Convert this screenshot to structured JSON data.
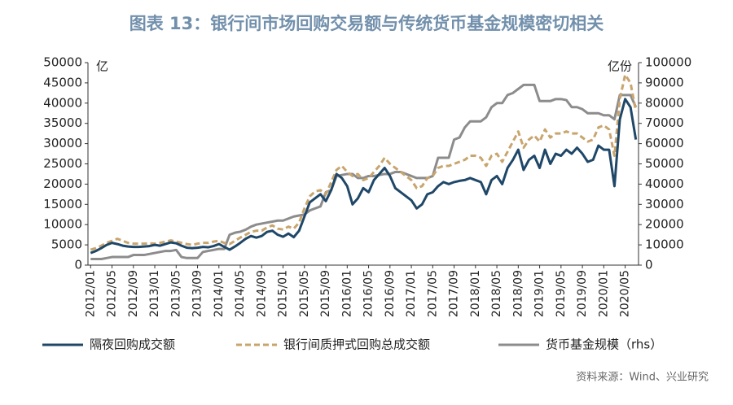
{
  "chart_data": {
    "type": "line",
    "title": "图表 13：银行间市场回购交易额与传统货币基金规模密切相关",
    "y_unit": "亿",
    "y2_unit": "亿份",
    "source": "资料来源：Wind、兴业研究",
    "categories": [
      "2012/01",
      null,
      null,
      null,
      "2012/05",
      null,
      null,
      null,
      "2012/09",
      null,
      null,
      null,
      "2013/01",
      null,
      null,
      null,
      "2013/05",
      null,
      null,
      null,
      "2013/09",
      null,
      null,
      null,
      "2014/01",
      null,
      null,
      null,
      "2014/05",
      null,
      null,
      null,
      "2014/09",
      null,
      null,
      null,
      "2015/01",
      null,
      null,
      null,
      "2015/05",
      null,
      null,
      null,
      "2015/09",
      null,
      null,
      null,
      "2016/01",
      null,
      null,
      null,
      "2016/05",
      null,
      null,
      null,
      "2016/09",
      null,
      null,
      null,
      "2017/01",
      null,
      null,
      null,
      "2017/05",
      null,
      null,
      null,
      "2017/09",
      null,
      null,
      null,
      "2018/01",
      null,
      null,
      null,
      "2018/05",
      null,
      null,
      null,
      "2018/09",
      null,
      null,
      null,
      "2019/01",
      null,
      null,
      null,
      "2019/05",
      null,
      null,
      null,
      "2019/09",
      null,
      null,
      null,
      "2020/01",
      null,
      null,
      null,
      "2020/05",
      null,
      null
    ],
    "ylim": [
      0,
      50000
    ],
    "yticks": [
      0,
      5000,
      10000,
      15000,
      20000,
      25000,
      30000,
      35000,
      40000,
      45000,
      50000
    ],
    "y2lim": [
      0,
      100000
    ],
    "y2ticks": [
      0,
      10000,
      20000,
      30000,
      40000,
      50000,
      60000,
      70000,
      80000,
      90000,
      100000
    ],
    "legend": "bottom",
    "series": [
      {
        "name": "隔夜回购成交额",
        "color": "#1f4768",
        "dash": false,
        "values": [
          3000,
          3500,
          4200,
          5000,
          5500,
          5200,
          4800,
          4600,
          4500,
          4500,
          4600,
          4700,
          5000,
          4800,
          5200,
          5600,
          5400,
          4800,
          4300,
          4200,
          4300,
          4500,
          4400,
          4700,
          5200,
          4500,
          3800,
          4600,
          5500,
          6500,
          7200,
          6800,
          7200,
          8200,
          8500,
          7500,
          7000,
          7800,
          6900,
          8500,
          12000,
          15500,
          16500,
          17500,
          15800,
          18500,
          22500,
          21500,
          19500,
          15000,
          16500,
          19000,
          18000,
          21000,
          22500,
          24000,
          22000,
          19000,
          18000,
          17000,
          16000,
          14000,
          15000,
          17500,
          18000,
          19500,
          20500,
          20000,
          20500,
          20800,
          21000,
          21500,
          21000,
          20500,
          17500,
          21000,
          22000,
          20000,
          24000,
          26000,
          28500,
          23500,
          26000,
          27000,
          24000,
          28500,
          25000,
          27500,
          27000,
          28500,
          27500,
          29000,
          27500,
          25500,
          26000,
          29500,
          28500,
          28500,
          19500,
          36000,
          41000,
          39000,
          31000
        ]
      },
      {
        "name": "银行间质押式回购总成交额",
        "color": "#c9a56e",
        "dash": true,
        "values": [
          3800,
          4200,
          4800,
          5500,
          6000,
          6500,
          6000,
          5500,
          5300,
          5300,
          5300,
          5400,
          5300,
          5500,
          5800,
          6100,
          5800,
          5500,
          5200,
          5000,
          5300,
          5500,
          5500,
          5800,
          6000,
          5500,
          5200,
          6000,
          6800,
          7500,
          8200,
          8500,
          8500,
          9300,
          9800,
          9000,
          8800,
          9500,
          9000,
          10500,
          14000,
          17000,
          18200,
          18500,
          17500,
          20500,
          23500,
          24500,
          23000,
          22000,
          22500,
          21000,
          21500,
          23000,
          24500,
          26500,
          25000,
          24000,
          23000,
          22000,
          21000,
          19000,
          19500,
          21500,
          22000,
          24000,
          24500,
          24500,
          25000,
          25500,
          26000,
          27000,
          27000,
          26500,
          24500,
          27000,
          27500,
          25500,
          28000,
          30500,
          33000,
          29000,
          31000,
          32000,
          30500,
          33500,
          31500,
          32500,
          32500,
          33000,
          32500,
          32500,
          31500,
          30500,
          31000,
          34000,
          34500,
          33500,
          27000,
          41000,
          47000,
          45000,
          38000
        ]
      },
      {
        "name": "货币基金规模（rhs）",
        "color": "#8c8c8c",
        "dash": false,
        "axis": "y2",
        "values": [
          3000,
          3000,
          3000,
          3500,
          4000,
          4000,
          4000,
          4000,
          5000,
          5000,
          5000,
          5500,
          6000,
          6500,
          7000,
          7000,
          7500,
          4000,
          3500,
          3500,
          3500,
          6500,
          7000,
          7500,
          8000,
          8000,
          15000,
          16000,
          16500,
          17500,
          19000,
          20000,
          20500,
          21000,
          21500,
          22000,
          22000,
          23000,
          24000,
          24500,
          25000,
          27000,
          28000,
          29000,
          36000,
          37000,
          44000,
          44500,
          45000,
          45000,
          43000,
          43000,
          44000,
          44000,
          44500,
          45000,
          45000,
          46000,
          46000,
          45000,
          44000,
          43000,
          43000,
          43000,
          44000,
          53000,
          53000,
          53000,
          62000,
          63000,
          68000,
          71000,
          71000,
          71000,
          73000,
          78000,
          80000,
          80000,
          84000,
          85000,
          87000,
          89000,
          89000,
          89000,
          81000,
          81000,
          81000,
          82000,
          82000,
          81500,
          78000,
          78000,
          77000,
          75000,
          75000,
          75000,
          74000,
          74000,
          72000,
          84000,
          84000,
          84000,
          78000
        ]
      }
    ]
  }
}
